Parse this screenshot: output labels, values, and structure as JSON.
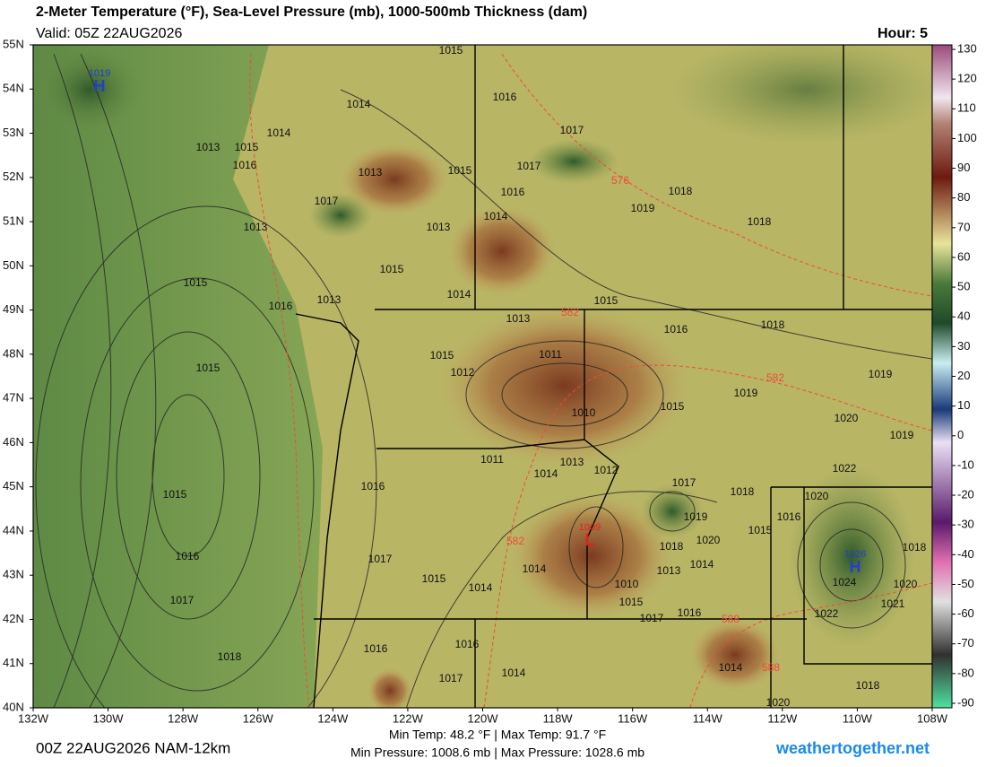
{
  "header": {
    "title": "2-Meter Temperature (°F), Sea-Level Pressure (mb), 1000-500mb Thickness (dam)",
    "valid": "Valid: 05Z 22AUG2026",
    "hour": "Hour: 5"
  },
  "lat_labels": [
    "55N",
    "54N",
    "53N",
    "52N",
    "51N",
    "50N",
    "49N",
    "48N",
    "47N",
    "46N",
    "45N",
    "44N",
    "43N",
    "42N",
    "41N",
    "40N"
  ],
  "lon_labels": [
    "132W",
    "130W",
    "128W",
    "126W",
    "124W",
    "122W",
    "120W",
    "118W",
    "116W",
    "114W",
    "112W",
    "110W",
    "108W"
  ],
  "colorbar": {
    "ticks": [
      130,
      120,
      110,
      100,
      90,
      80,
      70,
      60,
      50,
      40,
      30,
      20,
      10,
      0,
      -10,
      -20,
      -30,
      -40,
      -50,
      -60,
      -70,
      -80,
      -90
    ]
  },
  "isobar_labels": [
    "1015",
    "1016",
    "1014",
    "1014",
    "1017",
    "1015",
    "1013",
    "1016",
    "1013",
    "1015",
    "1017",
    "1018",
    "1016",
    "1019",
    "1017",
    "1014",
    "1018",
    "1013",
    "1013",
    "1015",
    "1015",
    "1014",
    "1013",
    "1016",
    "1015",
    "1013",
    "1018",
    "1016",
    "1015",
    "1011",
    "1015",
    "1012",
    "1019",
    "1019",
    "1015",
    "1010",
    "1020",
    "1019",
    "1011",
    "1013",
    "1014",
    "1012",
    "1022",
    "1016",
    "1017",
    "1018",
    "1020",
    "1015",
    "1019",
    "1016",
    "1015",
    "1020",
    "1018",
    "1018",
    "1014",
    "1013",
    "1014",
    "1016",
    "1017",
    "1015",
    "1014",
    "1010",
    "1024",
    "1020",
    "1017",
    "1015",
    "1021",
    "1017",
    "1016",
    "1022",
    "1016",
    "1016",
    "1018",
    "1014",
    "1014",
    "1017",
    "1018",
    "1020"
  ],
  "thickness_labels": [
    "576",
    "582",
    "582",
    "582",
    "588",
    "588"
  ],
  "centers": [
    {
      "symbol": "H",
      "pressure": "1019"
    },
    {
      "symbol": "H",
      "pressure": "1026"
    },
    {
      "symbol": "L",
      "pressure": "1009"
    }
  ],
  "footer": {
    "run": "00Z 22AUG2026 NAM-12km",
    "temps": "Min Temp:  48.2 °F | Max Temp:  91.7 °F",
    "pressures": "Min Pressure: 1008.6 mb | Max Pressure: 1028.6 mb",
    "site": "weathertogether.net"
  }
}
